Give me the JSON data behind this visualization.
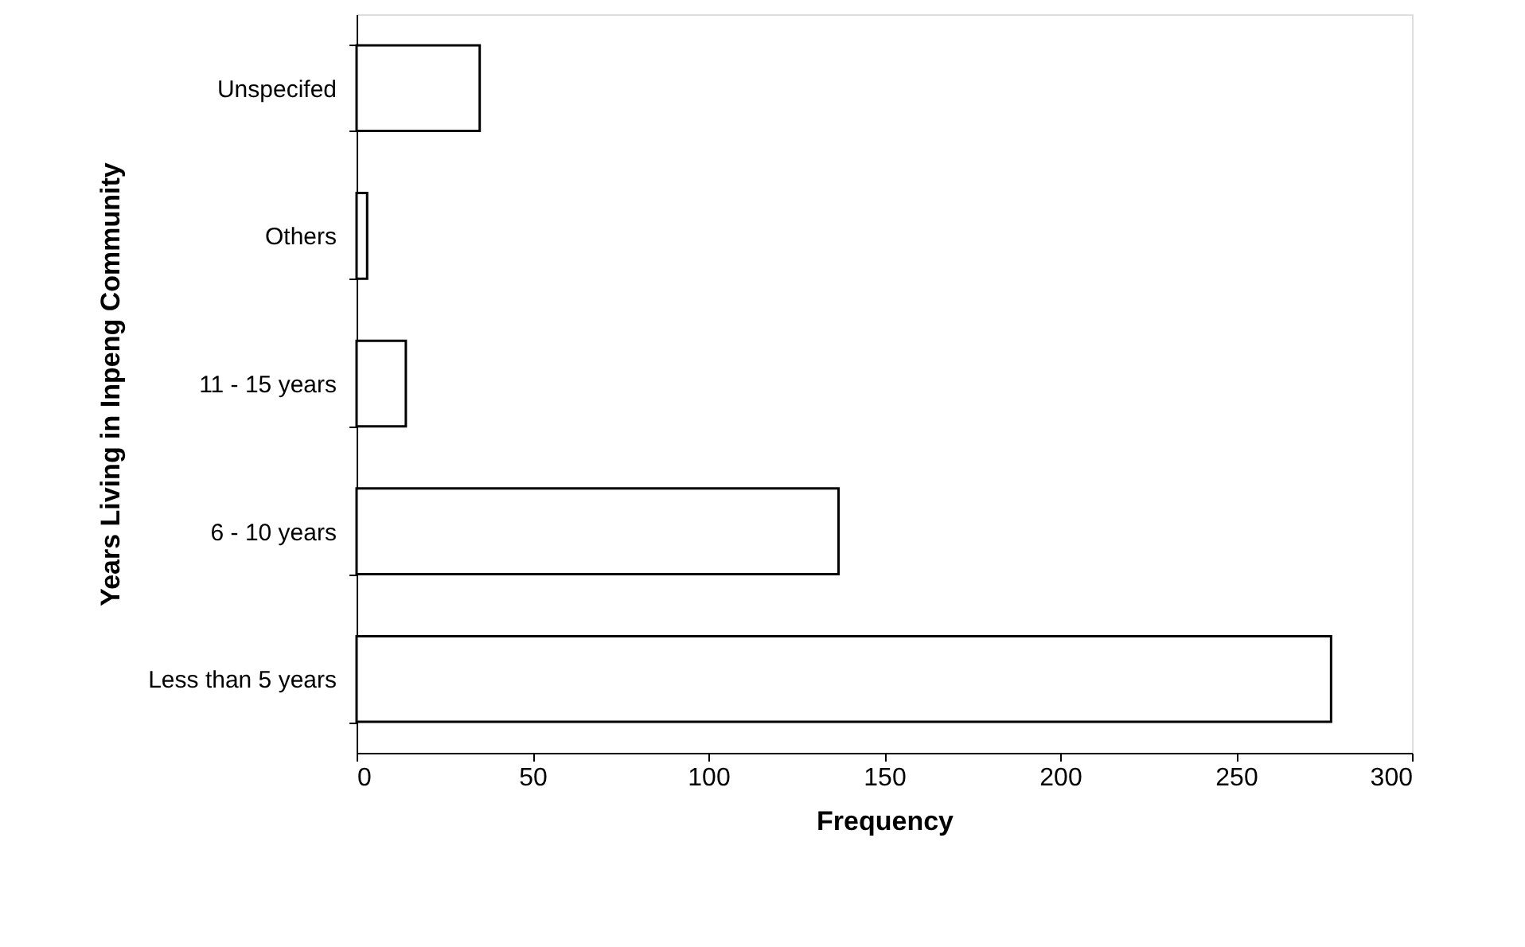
{
  "chart_data": {
    "type": "bar",
    "orientation": "horizontal",
    "xlabel": "Frequency",
    "ylabel": "Years Living in Inpeng Community",
    "categories": [
      "Unspecifed",
      "Others",
      "11 - 15 years",
      "6 - 10 years",
      "Less than 5 years"
    ],
    "values": [
      35,
      3,
      14,
      137,
      277
    ],
    "color": "#ffffff",
    "xlim": [
      0,
      300
    ],
    "xticks": [
      0,
      50,
      100,
      150,
      200,
      250,
      300
    ],
    "grid": false
  }
}
